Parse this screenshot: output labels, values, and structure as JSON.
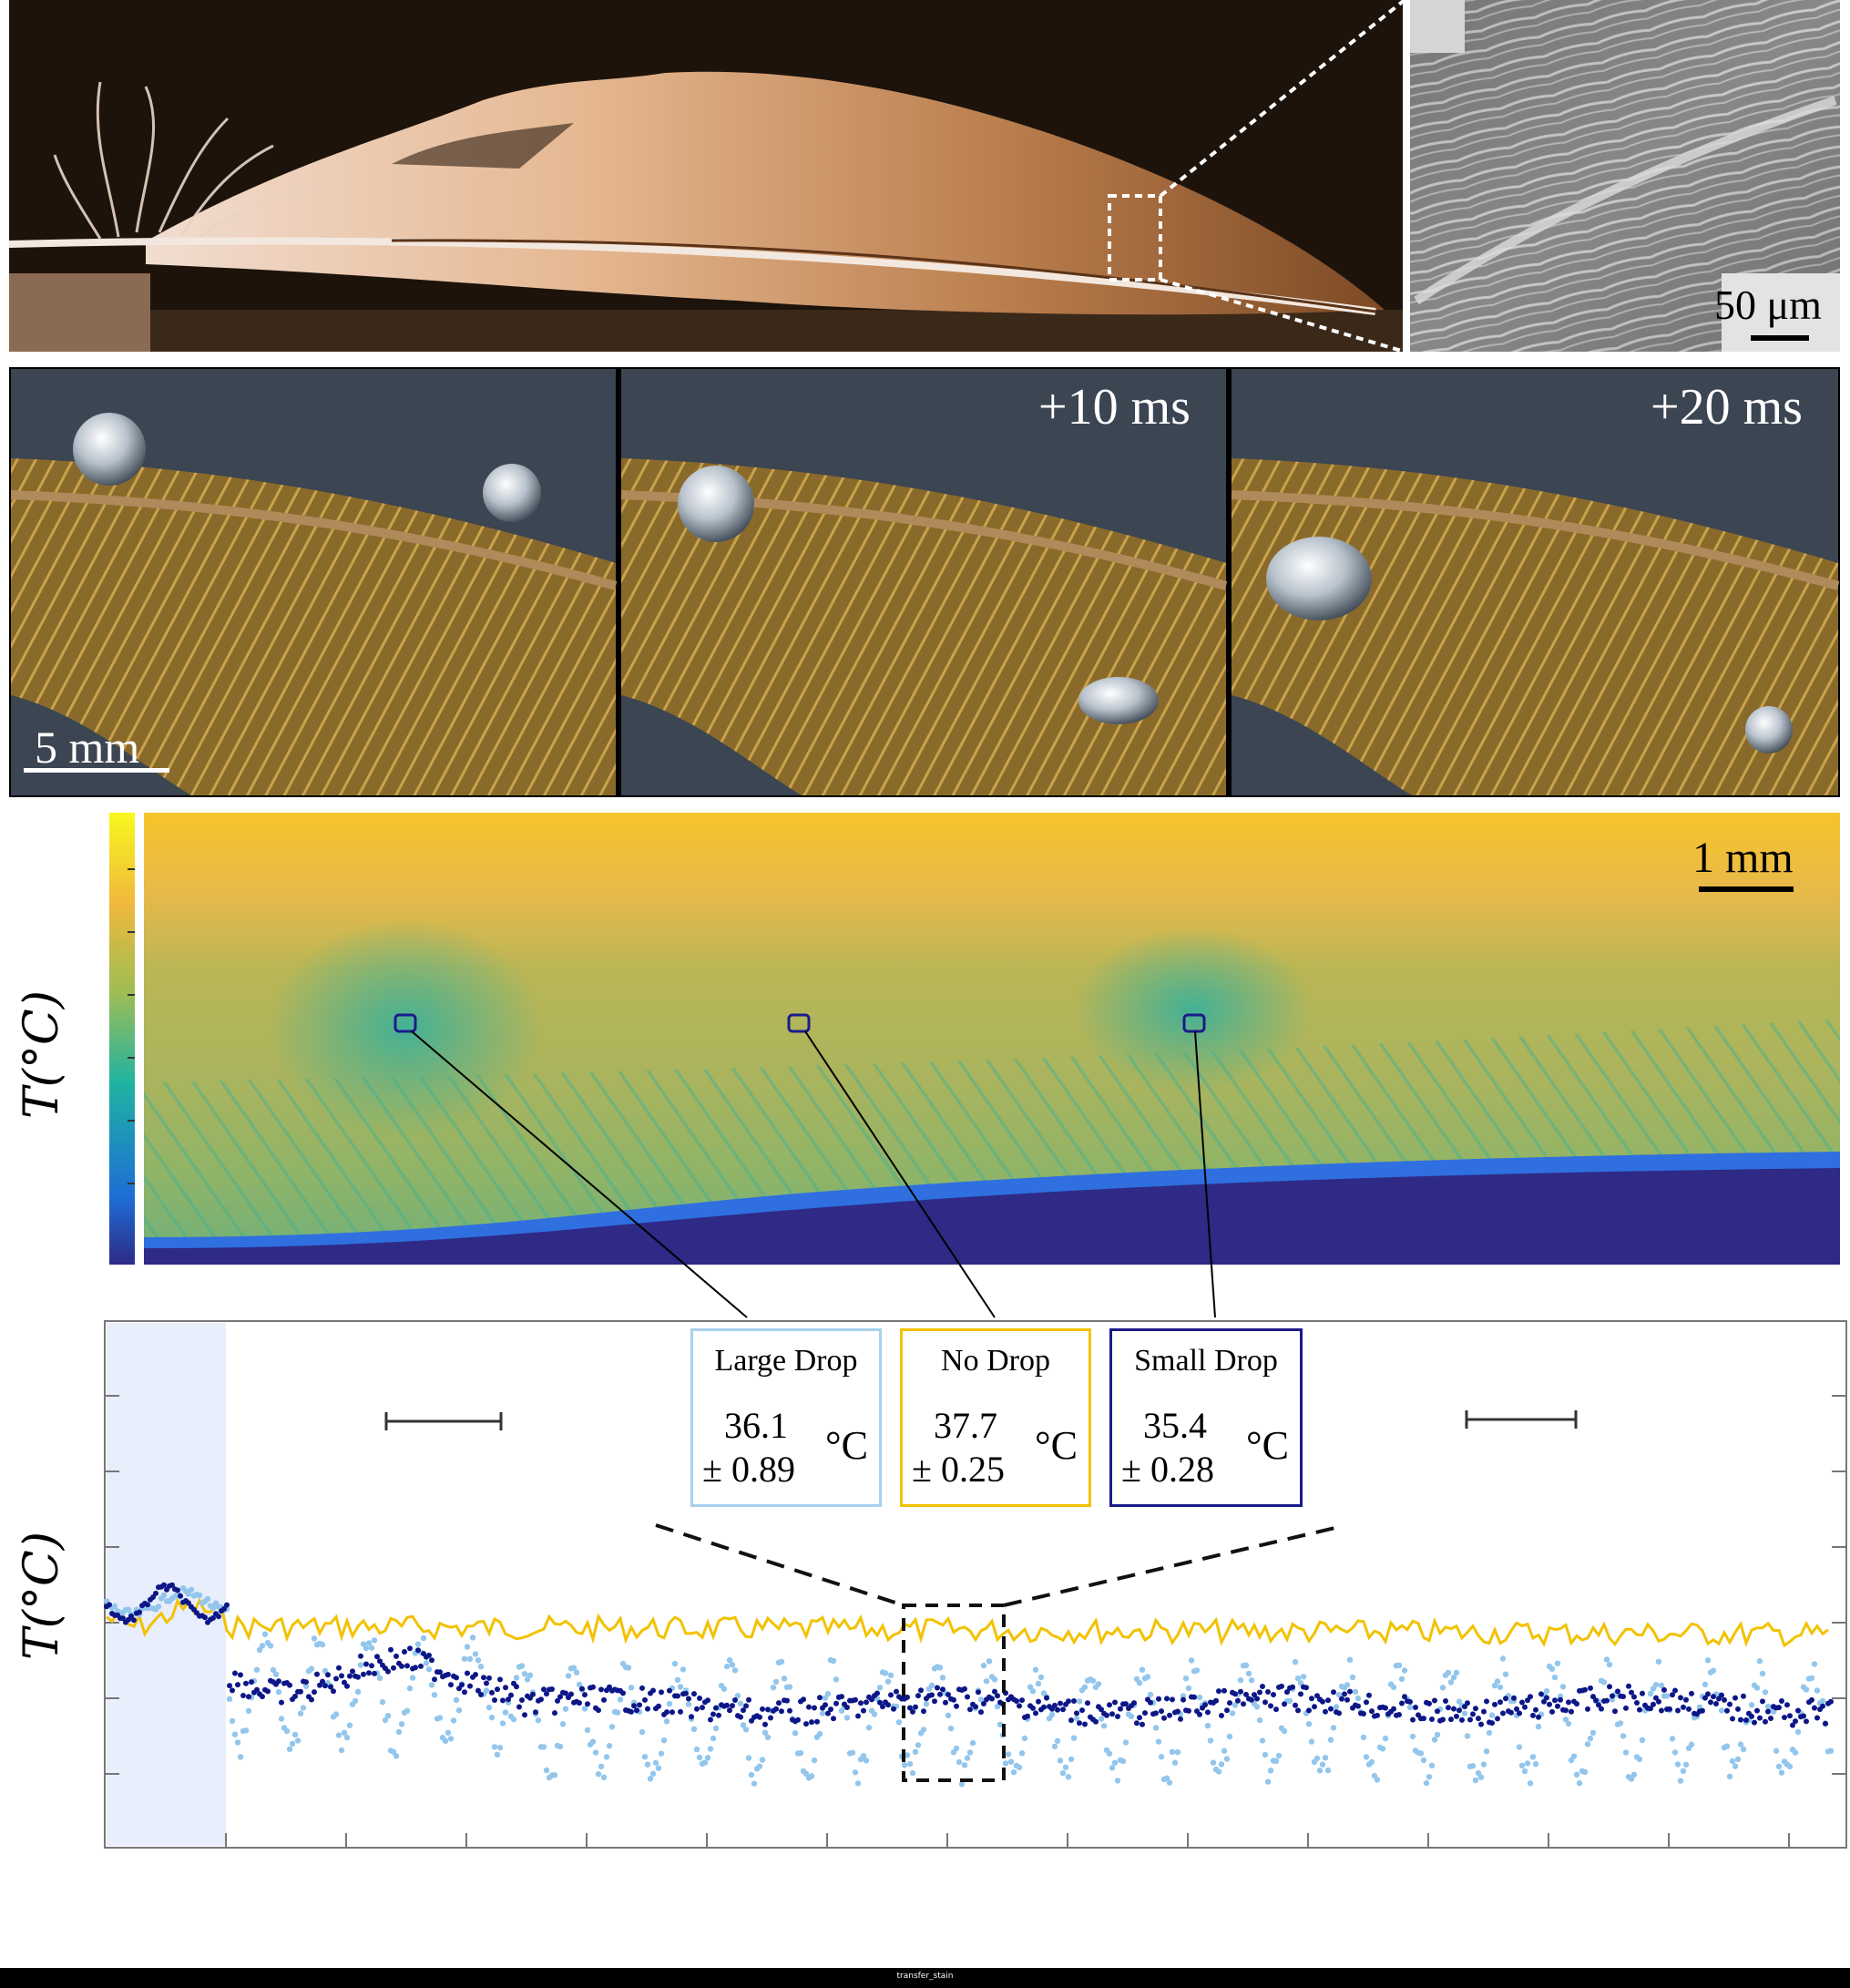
{
  "panel_a": {
    "sem_scale_label": "50 μm"
  },
  "panel_b": {
    "scale_label": "5 mm",
    "frames": [
      {
        "time_label": ""
      },
      {
        "time_label": "+10 ms"
      },
      {
        "time_label": "+20 ms"
      }
    ]
  },
  "panel_c": {
    "scale_label": "1 mm",
    "colorbar_label": "T(°C)",
    "probe_markers": [
      "large-drop",
      "no-drop",
      "small-drop"
    ]
  },
  "chart_data": {
    "type": "scatter",
    "title": "",
    "xlabel": "",
    "ylabel": "T(°C)",
    "grid": false,
    "series": [
      {
        "name": "Large Drop",
        "color": "#93c6ec",
        "mean": 36.1,
        "error": 0.89
      },
      {
        "name": "No Drop",
        "color": "#f2c200",
        "mean": 37.7,
        "error": 0.25
      },
      {
        "name": "Small Drop",
        "color": "#0d1687",
        "mean": 35.4,
        "error": 0.28
      }
    ]
  },
  "legend": {
    "unit": "°C",
    "items": [
      {
        "name": "Large Drop",
        "mean": "36.1",
        "err": "± 0.89",
        "color": "#93c6ec"
      },
      {
        "name": "No Drop",
        "mean": "37.7",
        "err": "± 0.25",
        "color": "#f2c200"
      },
      {
        "name": "Small Drop",
        "mean": "35.4",
        "err": "± 0.28",
        "color": "#1b1b8a"
      }
    ]
  },
  "footer": {
    "text": "transfer_stain"
  },
  "colors": {
    "feather": "#c08a5c",
    "background_dark": "#1d130b",
    "cold": "#2e2a86",
    "warm": "#f7c42a",
    "shade": "#e8eefb"
  }
}
